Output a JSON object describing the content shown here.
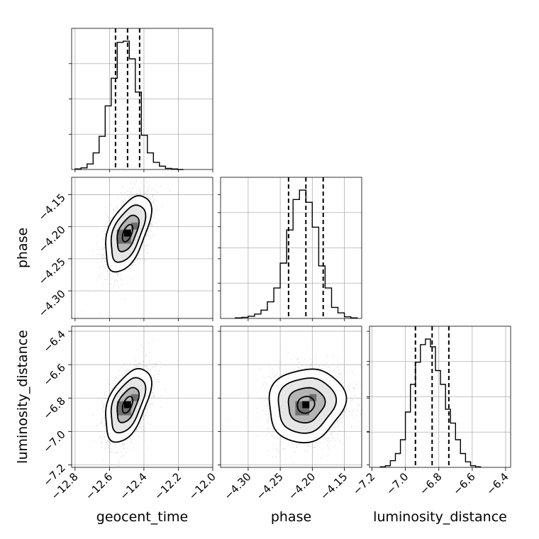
{
  "chart_data": {
    "type": "corner",
    "parameters": [
      "geocent_time",
      "phase",
      "luminosity_distance"
    ],
    "axis_labels": {
      "x": [
        "geocent_time",
        "phase",
        "luminosity_distance"
      ],
      "y": [
        "",
        "phase",
        "luminosity_distance"
      ]
    },
    "ranges": {
      "geocent_time": [
        -12.82,
        -12.0
      ],
      "phase": [
        -4.343,
        -4.123
      ],
      "luminosity_distance": [
        -7.215,
        -6.37
      ]
    },
    "ticks": {
      "geocent_time": [
        -12.8,
        -12.6,
        -12.4,
        -12.2,
        -12.0
      ],
      "phase": [
        -4.3,
        -4.25,
        -4.2,
        -4.15
      ],
      "luminosity_distance": [
        -7.2,
        -7.0,
        -6.8,
        -6.6,
        -6.4
      ]
    },
    "tick_labels": {
      "geocent_time": [
        "−12.8",
        "−12.6",
        "−12.4",
        "−12.2",
        "−12.0"
      ],
      "phase": [
        "−4.30",
        "−4.25",
        "−4.20",
        "−4.15"
      ],
      "luminosity_distance": [
        "−7.2",
        "−7.0",
        "−6.8",
        "−6.6",
        "−6.4"
      ]
    },
    "quantiles": {
      "geocent_time": [
        -12.565,
        -12.495,
        -12.425
      ],
      "phase": [
        -4.237,
        -4.21,
        -4.183
      ],
      "luminosity_distance": [
        -6.94,
        -6.84,
        -6.74
      ]
    },
    "histograms": {
      "geocent_time": {
        "edges": [
          -12.8,
          -12.765,
          -12.73,
          -12.695,
          -12.66,
          -12.625,
          -12.59,
          -12.555,
          -12.52,
          -12.485,
          -12.45,
          -12.415,
          -12.38,
          -12.345,
          -12.31,
          -12.275,
          -12.24,
          -12.205,
          -12.17
        ],
        "counts": [
          1,
          3,
          10,
          30,
          60,
          115,
          165,
          230,
          232,
          200,
          140,
          62,
          30,
          13,
          6,
          2,
          1,
          0
        ]
      },
      "phase": {
        "edges": [
          -4.32,
          -4.31,
          -4.3,
          -4.29,
          -4.28,
          -4.27,
          -4.26,
          -4.25,
          -4.24,
          -4.23,
          -4.22,
          -4.21,
          -4.2,
          -4.19,
          -4.18,
          -4.17,
          -4.16,
          -4.15,
          -4.14,
          -4.13
        ],
        "counts": [
          1,
          2,
          4,
          8,
          15,
          30,
          55,
          100,
          160,
          215,
          232,
          210,
          165,
          95,
          55,
          20,
          10,
          3,
          1
        ]
      },
      "luminosity_distance": {
        "edges": [
          -7.15,
          -7.12,
          -7.09,
          -7.06,
          -7.03,
          -7.0,
          -6.97,
          -6.94,
          -6.91,
          -6.88,
          -6.85,
          -6.82,
          -6.79,
          -6.76,
          -6.73,
          -6.7,
          -6.67,
          -6.64,
          -6.61,
          -6.58,
          -6.55
        ],
        "counts": [
          1,
          3,
          12,
          25,
          50,
          100,
          150,
          190,
          222,
          232,
          218,
          175,
          150,
          105,
          80,
          50,
          25,
          10,
          3,
          1
        ]
      }
    },
    "joint": {
      "phase_vs_geocent_time": {
        "center": [
          -12.495,
          -4.21
        ],
        "spread": [
          0.06,
          0.027
        ],
        "correlation": 0.52
      },
      "luminosity_distance_vs_geocent_time": {
        "center": [
          -12.495,
          -6.84
        ],
        "spread": [
          0.06,
          0.1
        ],
        "correlation": 0.5
      },
      "luminosity_distance_vs_phase": {
        "center": [
          -4.21,
          -6.84
        ],
        "spread": [
          0.027,
          0.1
        ],
        "correlation": 0.1
      }
    },
    "grid": true,
    "colors": {
      "scatter": "#aaaaaa",
      "density": "#000000",
      "lines": "#000000",
      "grid": "#b0b0b0"
    }
  }
}
